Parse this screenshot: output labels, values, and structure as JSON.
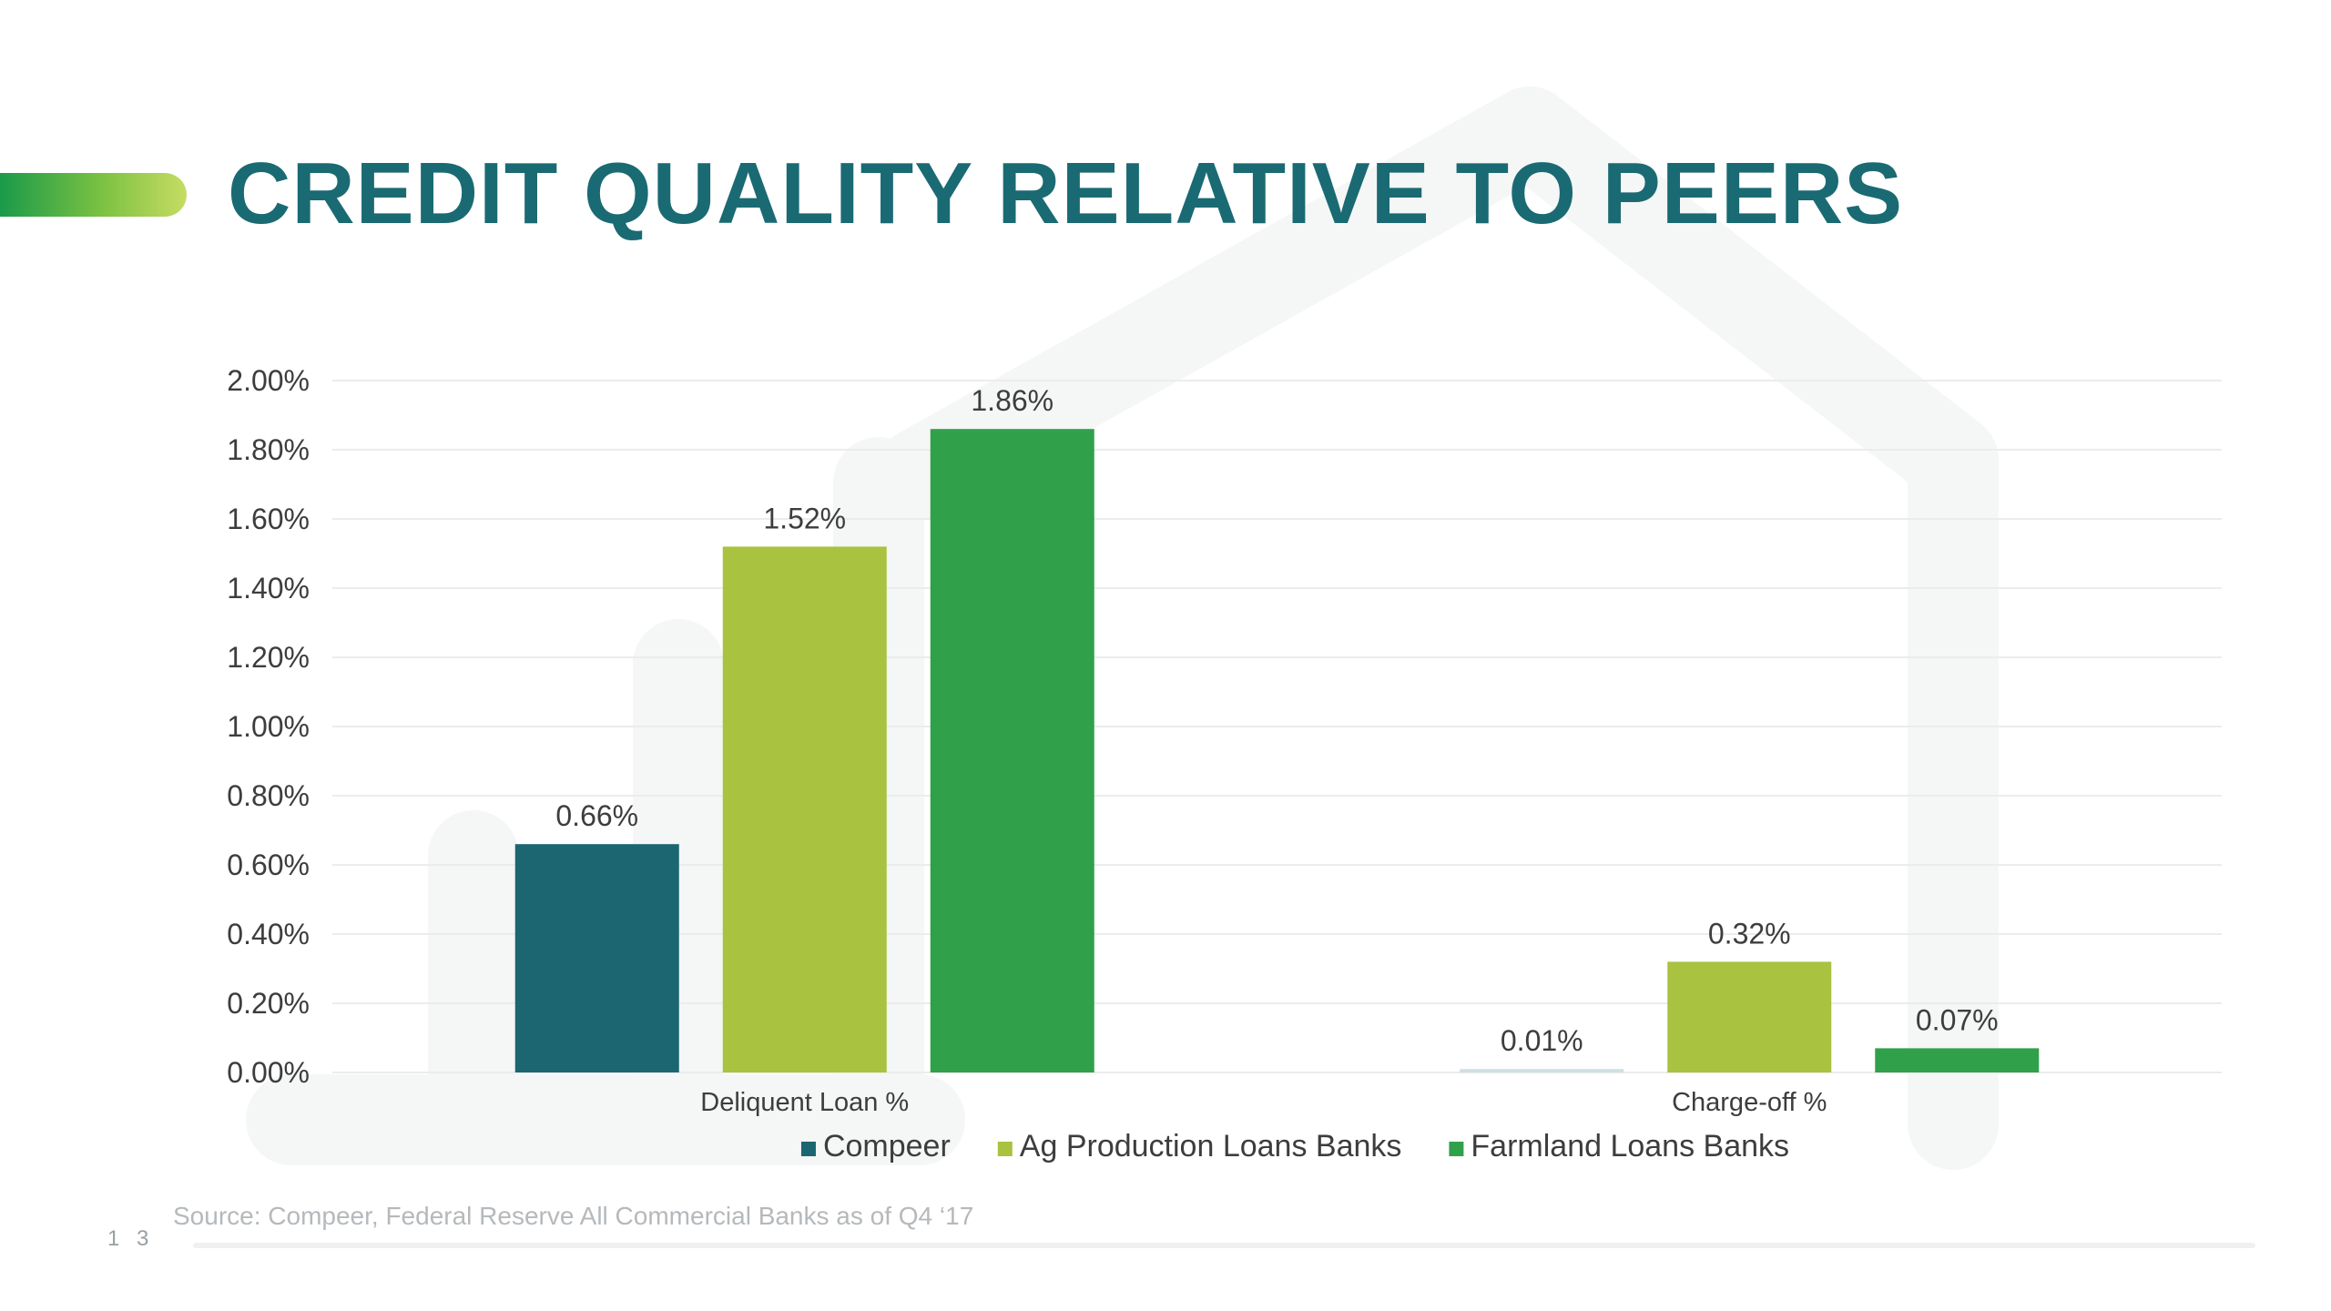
{
  "slide": {
    "title": "CREDIT QUALITY RELATIVE TO PEERS",
    "source": "Source: Compeer, Federal Reserve All Commercial Banks as of Q4 ‘17",
    "page_number": "1 3",
    "accent_colors": [
      "#1a9a4a",
      "#7cc242",
      "#c6dc62"
    ],
    "title_color": "#1a6a73"
  },
  "chart_data": {
    "type": "bar",
    "categories": [
      "Deliquent Loan %",
      "Charge-off %"
    ],
    "series": [
      {
        "name": "Compeer",
        "values": [
          0.66,
          0.01
        ],
        "labels": [
          "0.66%",
          "0.01%"
        ],
        "color": "#1b6671"
      },
      {
        "name": "Ag Production Loans Banks",
        "values": [
          1.52,
          0.32
        ],
        "labels": [
          "1.52%",
          "0.32%"
        ],
        "color": "#a9c23f"
      },
      {
        "name": "Farmland Loans Banks",
        "values": [
          1.86,
          0.07
        ],
        "labels": [
          "1.86%",
          "0.07%"
        ],
        "color": "#31a04b"
      }
    ],
    "ylim": [
      0,
      2.0
    ],
    "yticks": [
      0,
      0.2,
      0.4,
      0.6,
      0.8,
      1.0,
      1.2,
      1.4,
      1.6,
      1.8,
      2.0
    ],
    "ytick_labels": [
      "0.00%",
      "0.20%",
      "0.40%",
      "0.60%",
      "0.80%",
      "1.00%",
      "1.20%",
      "1.40%",
      "1.60%",
      "1.80%",
      "2.00%"
    ],
    "grid": true,
    "legend_position": "bottom",
    "title": "",
    "xlabel": "",
    "ylabel": ""
  }
}
